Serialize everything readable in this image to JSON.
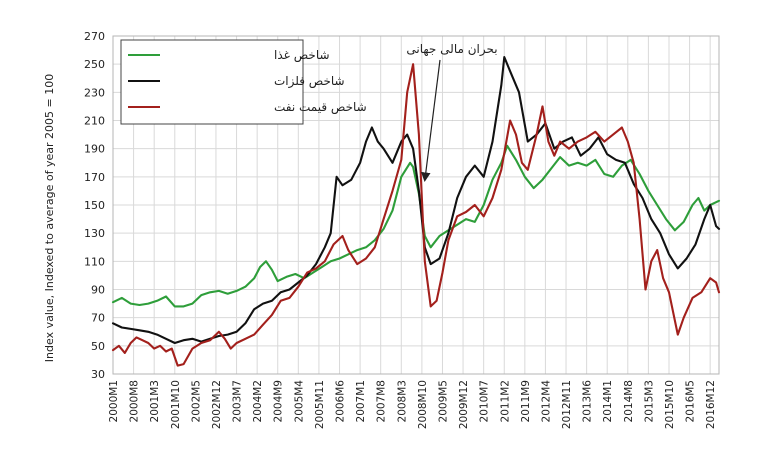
{
  "chart_data": {
    "type": "line",
    "title": "",
    "xlabel": "",
    "ylabel": "Index value, Indexed to average of year 2005 = 100",
    "ylim": [
      30,
      270
    ],
    "yticks": [
      30,
      50,
      70,
      90,
      110,
      130,
      150,
      170,
      190,
      210,
      230,
      250,
      270
    ],
    "grid": true,
    "legend_position": "top-left",
    "x_start": "2000M1",
    "x_end": "2016M12",
    "x_tick_labels": [
      "2000M1",
      "2000M8",
      "2001M3",
      "2001M10",
      "2002M5",
      "2002M12",
      "2003M7",
      "2004M2",
      "2004M9",
      "2005M4",
      "2005M11",
      "2006M6",
      "2007M1",
      "2007M8",
      "2008M3",
      "2008M10",
      "2009M5",
      "2009M12",
      "2010M7",
      "2011M2",
      "2011M9",
      "2012M4",
      "2012M11",
      "2013M6",
      "2014M1",
      "2014M8",
      "2015M3",
      "2015M10",
      "2016M5",
      "2016M12"
    ],
    "annotation": {
      "text": "بحران مالی جهانی",
      "points_to": "2008M10"
    },
    "series": [
      {
        "name": "شاخص غذا",
        "color": "#2e9e3a",
        "points": [
          [
            "2000M1",
            81
          ],
          [
            "2000M4",
            84
          ],
          [
            "2000M7",
            80
          ],
          [
            "2000M10",
            79
          ],
          [
            "2001M1",
            80
          ],
          [
            "2001M4",
            82
          ],
          [
            "2001M7",
            85
          ],
          [
            "2001M10",
            78
          ],
          [
            "2002M1",
            78
          ],
          [
            "2002M4",
            80
          ],
          [
            "2002M7",
            86
          ],
          [
            "2002M10",
            88
          ],
          [
            "2003M1",
            89
          ],
          [
            "2003M4",
            87
          ],
          [
            "2003M7",
            89
          ],
          [
            "2003M10",
            92
          ],
          [
            "2004M1",
            98
          ],
          [
            "2004M3",
            106
          ],
          [
            "2004M5",
            110
          ],
          [
            "2004M7",
            104
          ],
          [
            "2004M9",
            96
          ],
          [
            "2004M12",
            99
          ],
          [
            "2005M3",
            101
          ],
          [
            "2005M6",
            98
          ],
          [
            "2005M9",
            102
          ],
          [
            "2005M12",
            106
          ],
          [
            "2006M3",
            110
          ],
          [
            "2006M6",
            112
          ],
          [
            "2006M9",
            115
          ],
          [
            "2006M12",
            118
          ],
          [
            "2007M3",
            120
          ],
          [
            "2007M6",
            125
          ],
          [
            "2007M9",
            133
          ],
          [
            "2007M12",
            146
          ],
          [
            "2008M3",
            170
          ],
          [
            "2008M6",
            180
          ],
          [
            "2008M7",
            177
          ],
          [
            "2008M9",
            158
          ],
          [
            "2008M11",
            128
          ],
          [
            "2009M1",
            120
          ],
          [
            "2009M4",
            128
          ],
          [
            "2009M7",
            132
          ],
          [
            "2009M10",
            136
          ],
          [
            "2010M1",
            140
          ],
          [
            "2010M4",
            138
          ],
          [
            "2010M7",
            150
          ],
          [
            "2010M10",
            168
          ],
          [
            "2011M1",
            180
          ],
          [
            "2011M3",
            192
          ],
          [
            "2011M6",
            182
          ],
          [
            "2011M9",
            170
          ],
          [
            "2011M12",
            162
          ],
          [
            "2012M3",
            168
          ],
          [
            "2012M6",
            176
          ],
          [
            "2012M9",
            184
          ],
          [
            "2012M12",
            178
          ],
          [
            "2013M3",
            180
          ],
          [
            "2013M6",
            178
          ],
          [
            "2013M9",
            182
          ],
          [
            "2013M12",
            172
          ],
          [
            "2014M3",
            170
          ],
          [
            "2014M6",
            178
          ],
          [
            "2014M9",
            182
          ],
          [
            "2014M12",
            172
          ],
          [
            "2015M3",
            160
          ],
          [
            "2015M6",
            150
          ],
          [
            "2015M9",
            140
          ],
          [
            "2015M12",
            132
          ],
          [
            "2016M3",
            138
          ],
          [
            "2016M6",
            150
          ],
          [
            "2016M8",
            155
          ],
          [
            "2016M10",
            146
          ],
          [
            "2016M12",
            150
          ],
          [
            "2017M3",
            153
          ]
        ]
      },
      {
        "name": "شاخص فلزات",
        "color": "#111111",
        "points": [
          [
            "2000M1",
            66
          ],
          [
            "2000M4",
            63
          ],
          [
            "2000M7",
            62
          ],
          [
            "2000M10",
            61
          ],
          [
            "2001M1",
            60
          ],
          [
            "2001M4",
            58
          ],
          [
            "2001M7",
            55
          ],
          [
            "2001M10",
            52
          ],
          [
            "2002M1",
            54
          ],
          [
            "2002M4",
            55
          ],
          [
            "2002M7",
            53
          ],
          [
            "2002M10",
            55
          ],
          [
            "2003M1",
            57
          ],
          [
            "2003M4",
            58
          ],
          [
            "2003M7",
            60
          ],
          [
            "2003M10",
            66
          ],
          [
            "2004M1",
            76
          ],
          [
            "2004M4",
            80
          ],
          [
            "2004M7",
            82
          ],
          [
            "2004M10",
            88
          ],
          [
            "2005M1",
            90
          ],
          [
            "2005M4",
            95
          ],
          [
            "2005M7",
            100
          ],
          [
            "2005M10",
            108
          ],
          [
            "2006M1",
            120
          ],
          [
            "2006M3",
            130
          ],
          [
            "2006M5",
            170
          ],
          [
            "2006M7",
            164
          ],
          [
            "2006M10",
            168
          ],
          [
            "2007M1",
            180
          ],
          [
            "2007M3",
            195
          ],
          [
            "2007M5",
            205
          ],
          [
            "2007M7",
            195
          ],
          [
            "2007M9",
            190
          ],
          [
            "2007M12",
            180
          ],
          [
            "2008M3",
            195
          ],
          [
            "2008M5",
            200
          ],
          [
            "2008M7",
            190
          ],
          [
            "2008M9",
            160
          ],
          [
            "2008M11",
            120
          ],
          [
            "2009M1",
            108
          ],
          [
            "2009M4",
            112
          ],
          [
            "2009M7",
            130
          ],
          [
            "2009M10",
            155
          ],
          [
            "2010M1",
            170
          ],
          [
            "2010M4",
            178
          ],
          [
            "2010M7",
            170
          ],
          [
            "2010M10",
            195
          ],
          [
            "2011M1",
            235
          ],
          [
            "2011M2",
            255
          ],
          [
            "2011M4",
            245
          ],
          [
            "2011M7",
            230
          ],
          [
            "2011M10",
            195
          ],
          [
            "2012M1",
            200
          ],
          [
            "2012M4",
            208
          ],
          [
            "2012M7",
            190
          ],
          [
            "2012M10",
            195
          ],
          [
            "2013M1",
            198
          ],
          [
            "2013M4",
            185
          ],
          [
            "2013M7",
            190
          ],
          [
            "2013M10",
            198
          ],
          [
            "2014M1",
            186
          ],
          [
            "2014M4",
            182
          ],
          [
            "2014M7",
            180
          ],
          [
            "2014M10",
            165
          ],
          [
            "2015M1",
            155
          ],
          [
            "2015M4",
            140
          ],
          [
            "2015M7",
            130
          ],
          [
            "2015M10",
            115
          ],
          [
            "2016M1",
            105
          ],
          [
            "2016M4",
            112
          ],
          [
            "2016M7",
            122
          ],
          [
            "2016M10",
            140
          ],
          [
            "2016M12",
            150
          ],
          [
            "2017M2",
            135
          ],
          [
            "2017M3",
            133
          ]
        ]
      },
      {
        "name": "شاخص قیمت نفت",
        "color": "#a3201c",
        "points": [
          [
            "2000M1",
            47
          ],
          [
            "2000M3",
            50
          ],
          [
            "2000M5",
            45
          ],
          [
            "2000M7",
            52
          ],
          [
            "2000M9",
            56
          ],
          [
            "2000M11",
            54
          ],
          [
            "2001M1",
            52
          ],
          [
            "2001M3",
            48
          ],
          [
            "2001M5",
            50
          ],
          [
            "2001M7",
            46
          ],
          [
            "2001M9",
            48
          ],
          [
            "2001M11",
            36
          ],
          [
            "2002M1",
            37
          ],
          [
            "2002M4",
            48
          ],
          [
            "2002M7",
            52
          ],
          [
            "2002M10",
            54
          ],
          [
            "2003M1",
            60
          ],
          [
            "2003M3",
            55
          ],
          [
            "2003M5",
            48
          ],
          [
            "2003M7",
            52
          ],
          [
            "2003M10",
            55
          ],
          [
            "2004M1",
            58
          ],
          [
            "2004M4",
            65
          ],
          [
            "2004M7",
            72
          ],
          [
            "2004M10",
            82
          ],
          [
            "2005M1",
            84
          ],
          [
            "2005M4",
            92
          ],
          [
            "2005M7",
            102
          ],
          [
            "2005M10",
            105
          ],
          [
            "2006M1",
            110
          ],
          [
            "2006M4",
            122
          ],
          [
            "2006M7",
            128
          ],
          [
            "2006M9",
            118
          ],
          [
            "2006M12",
            108
          ],
          [
            "2007M3",
            112
          ],
          [
            "2007M6",
            120
          ],
          [
            "2007M9",
            140
          ],
          [
            "2007M12",
            160
          ],
          [
            "2008M3",
            182
          ],
          [
            "2008M5",
            230
          ],
          [
            "2008M7",
            250
          ],
          [
            "2008M9",
            200
          ],
          [
            "2008M11",
            110
          ],
          [
            "2009M1",
            78
          ],
          [
            "2009M3",
            82
          ],
          [
            "2009M5",
            102
          ],
          [
            "2009M7",
            125
          ],
          [
            "2009M10",
            142
          ],
          [
            "2010M1",
            145
          ],
          [
            "2010M4",
            150
          ],
          [
            "2010M7",
            142
          ],
          [
            "2010M10",
            155
          ],
          [
            "2011M1",
            175
          ],
          [
            "2011M4",
            210
          ],
          [
            "2011M6",
            200
          ],
          [
            "2011M8",
            180
          ],
          [
            "2011M10",
            175
          ],
          [
            "2012M1",
            200
          ],
          [
            "2012M3",
            220
          ],
          [
            "2012M5",
            195
          ],
          [
            "2012M7",
            185
          ],
          [
            "2012M9",
            195
          ],
          [
            "2012M12",
            190
          ],
          [
            "2013M3",
            195
          ],
          [
            "2013M6",
            198
          ],
          [
            "2013M9",
            202
          ],
          [
            "2013M12",
            195
          ],
          [
            "2014M3",
            200
          ],
          [
            "2014M6",
            205
          ],
          [
            "2014M8",
            195
          ],
          [
            "2014M10",
            180
          ],
          [
            "2014M12",
            140
          ],
          [
            "2015M2",
            90
          ],
          [
            "2015M4",
            110
          ],
          [
            "2015M6",
            118
          ],
          [
            "2015M8",
            98
          ],
          [
            "2015M10",
            88
          ],
          [
            "2016M1",
            58
          ],
          [
            "2016M3",
            70
          ],
          [
            "2016M6",
            84
          ],
          [
            "2016M9",
            88
          ],
          [
            "2016M12",
            98
          ],
          [
            "2017M2",
            95
          ],
          [
            "2017M3",
            88
          ]
        ]
      }
    ]
  }
}
